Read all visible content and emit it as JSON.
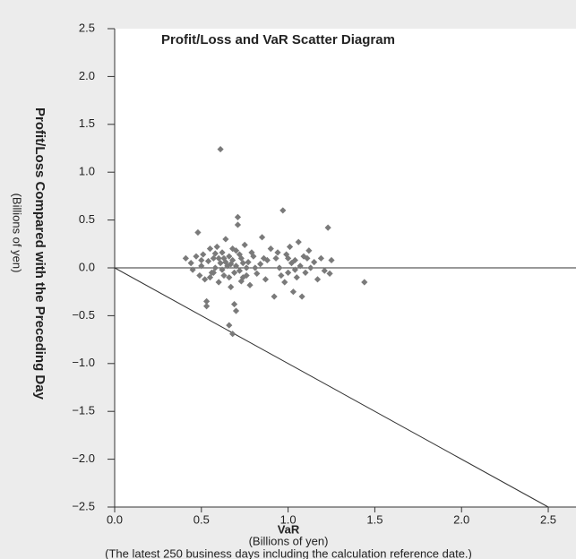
{
  "chart_data": {
    "type": "scatter",
    "title": "Profit/Loss and VaR Scatter Diagram",
    "x_label": "VaR",
    "x_sublabel": "(Billions of yen)",
    "y_label": "Profit/Loss Compared with the Preceding Day",
    "y_sublabel": "(Billions of yen)",
    "note": "(The latest 250 business days including the calculation reference date.)",
    "color": "#7a7a7a",
    "x": [
      0.41,
      0.44,
      0.45,
      0.47,
      0.48,
      0.49,
      0.5,
      0.51,
      0.52,
      0.53,
      0.53,
      0.54,
      0.55,
      0.56,
      0.57,
      0.58,
      0.59,
      0.6,
      0.61,
      0.61,
      0.62,
      0.63,
      0.64,
      0.65,
      0.66,
      0.66,
      0.67,
      0.68,
      0.68,
      0.69,
      0.7,
      0.7,
      0.71,
      0.71,
      0.72,
      0.73,
      0.74,
      0.75,
      0.76,
      0.77,
      0.78,
      0.8,
      0.82,
      0.84,
      0.85,
      0.87,
      0.88,
      0.9,
      0.92,
      0.93,
      0.95,
      0.97,
      0.98,
      0.99,
      1.0,
      1.01,
      1.02,
      1.03,
      1.04,
      1.05,
      1.06,
      1.07,
      1.08,
      1.09,
      1.1,
      1.12,
      1.13,
      1.15,
      1.17,
      1.19,
      1.21,
      1.23,
      1.24,
      1.25,
      1.44,
      0.5,
      0.55,
      0.58,
      0.6,
      0.62,
      0.64,
      0.66,
      0.68,
      0.7,
      0.72,
      0.74,
      0.76,
      0.79,
      0.81,
      0.86,
      0.94,
      0.96,
      1.0,
      1.04,
      1.11,
      0.57,
      0.63,
      0.67,
      0.69,
      0.73
    ],
    "y": [
      0.1,
      0.05,
      -0.02,
      0.12,
      0.37,
      -0.08,
      0.02,
      0.14,
      -0.12,
      -0.35,
      -0.4,
      0.07,
      0.2,
      -0.05,
      0.1,
      0.0,
      0.22,
      -0.15,
      1.24,
      0.05,
      0.16,
      -0.08,
      0.3,
      0.02,
      -0.6,
      0.12,
      -0.2,
      -0.69,
      0.08,
      -0.38,
      -0.45,
      0.18,
      0.53,
      0.45,
      -0.03,
      0.1,
      -0.1,
      0.24,
      0.0,
      0.06,
      -0.18,
      0.12,
      -0.06,
      0.04,
      0.32,
      -0.12,
      0.08,
      0.2,
      -0.3,
      0.1,
      0.0,
      0.6,
      -0.15,
      0.14,
      -0.05,
      0.22,
      0.05,
      -0.25,
      0.08,
      -0.1,
      0.27,
      0.02,
      -0.3,
      0.12,
      -0.05,
      0.18,
      0.0,
      0.06,
      -0.12,
      0.1,
      -0.03,
      0.42,
      -0.06,
      0.08,
      -0.15,
      0.08,
      -0.1,
      0.15,
      0.1,
      -0.02,
      0.06,
      -0.1,
      0.2,
      0.02,
      0.14,
      0.05,
      -0.08,
      0.16,
      0.0,
      0.1,
      0.16,
      -0.08,
      0.1,
      -0.02,
      0.1,
      -0.05,
      0.1,
      0.04,
      -0.05,
      -0.14
    ],
    "xlim": [
      0,
      2.66
    ],
    "xticks": [
      {
        "value": 0,
        "label": "0.0"
      },
      0.5,
      {
        "value": 1,
        "label": "1.0"
      },
      1.5,
      {
        "value": 2,
        "label": "2.0"
      },
      2.5
    ],
    "ylim": [
      -2.5,
      2.5
    ],
    "yticks": [
      2.5,
      {
        "value": 2,
        "label": "2.0"
      },
      1.5,
      {
        "value": 1,
        "label": "1.0"
      },
      0.5,
      {
        "value": 0,
        "label": "0.0"
      },
      {
        "value": -0.5,
        "label": "−0.5"
      },
      {
        "value": -1,
        "label": "−1.0"
      },
      {
        "value": -1.5,
        "label": "−1.5"
      },
      {
        "value": -2,
        "label": "−2.0"
      },
      {
        "value": -2.5,
        "label": "−2.5"
      }
    ],
    "zero_line": true,
    "var_line": true
  }
}
